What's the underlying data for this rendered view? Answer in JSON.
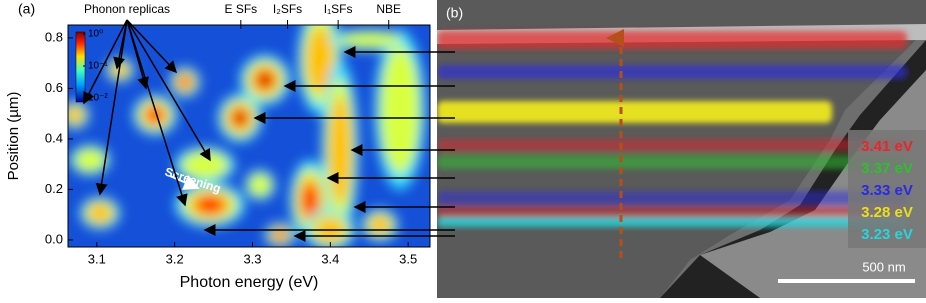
{
  "chart_data": [
    {
      "type": "heatmap",
      "panel_label": "(a)",
      "xlabel": "Photon energy (eV)",
      "ylabel": "Position (µm)",
      "xlim": [
        3.063,
        3.528
      ],
      "xticks": [
        3.1,
        3.2,
        3.3,
        3.4,
        3.5
      ],
      "ylim": [
        -0.028,
        0.851
      ],
      "yticks": [
        {
          "value": 0,
          "label": "0.0"
        },
        0.2,
        0.4,
        0.6,
        0.8
      ],
      "top_markers": [
        {
          "value": 3.285,
          "label": "E SFs"
        },
        {
          "value": 3.345,
          "label": "I₂SFs"
        },
        {
          "value": 3.41,
          "label": "I₁SFs"
        },
        {
          "value": 3.475,
          "label": "NBE"
        }
      ],
      "colorbar": {
        "scale": "log",
        "ticks": [
          {
            "value": 1,
            "label": "10⁰"
          },
          {
            "value": 0.1,
            "label": "10⁻¹"
          },
          {
            "value": 0.01,
            "label": "10⁻²"
          }
        ]
      },
      "annotations": [
        "Phonon replicas",
        "Screening"
      ]
    },
    {
      "type": "image",
      "panel_label": "(b)",
      "legend": [
        {
          "name": "3.41 eV",
          "color": "#e8262a"
        },
        {
          "name": "3.37 eV",
          "color": "#2ec02e"
        },
        {
          "name": "3.33 eV",
          "color": "#2a2ae0"
        },
        {
          "name": "3.28 eV",
          "color": "#e6e020"
        },
        {
          "name": "3.23 eV",
          "color": "#22d8e0"
        }
      ],
      "scale_bar": "500 nm"
    }
  ]
}
